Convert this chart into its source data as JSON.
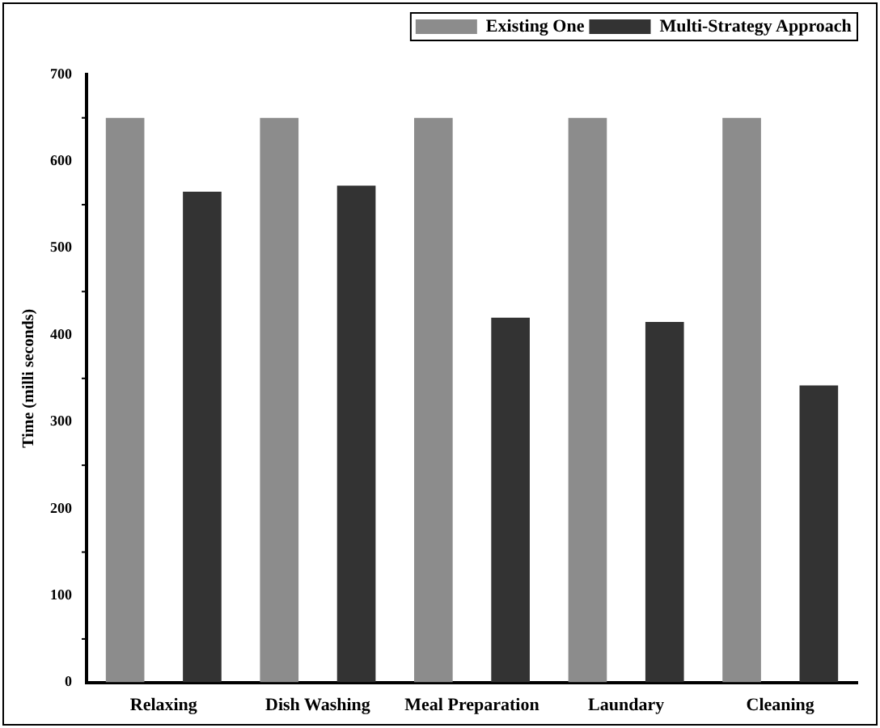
{
  "chart_data": {
    "type": "bar",
    "ylabel": "Time (milli seconds)",
    "categories": [
      "Relaxing",
      "Dish Washing",
      "Meal Preparation",
      "Laundary",
      "Cleaning"
    ],
    "series": [
      {
        "name": "Existing One",
        "color": "#8c8c8c",
        "values": [
          650,
          650,
          650,
          650,
          650
        ]
      },
      {
        "name": "Multi-Strategy Approach",
        "color": "#333333",
        "values": [
          565,
          572,
          420,
          415,
          342
        ]
      }
    ],
    "ylim": [
      0,
      700
    ],
    "yticks": [
      0,
      100,
      200,
      300,
      400,
      500,
      600,
      700
    ],
    "grid": false,
    "legend": "top right"
  }
}
